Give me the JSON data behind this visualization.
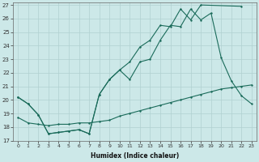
{
  "xlabel": "Humidex (Indice chaleur)",
  "ylabel": "",
  "xlim": [
    -0.5,
    23.5
  ],
  "ylim": [
    17,
    27.2
  ],
  "yticks": [
    17,
    18,
    19,
    20,
    21,
    22,
    23,
    24,
    25,
    26,
    27
  ],
  "xticks": [
    0,
    1,
    2,
    3,
    4,
    5,
    6,
    7,
    8,
    9,
    10,
    11,
    12,
    13,
    14,
    15,
    16,
    17,
    18,
    19,
    20,
    21,
    22,
    23
  ],
  "bg_color": "#cce8e8",
  "grid_color": "#b0d0d0",
  "line_color": "#1a6b5a",
  "line1_x": [
    0,
    1,
    2,
    3,
    4,
    5,
    6,
    7,
    8,
    9,
    10,
    11,
    12,
    13,
    14,
    15,
    16,
    17,
    18,
    22
  ],
  "line1_y": [
    20.2,
    19.7,
    18.9,
    17.5,
    17.6,
    17.7,
    17.8,
    17.5,
    20.4,
    21.5,
    22.2,
    22.8,
    23.9,
    24.4,
    25.5,
    25.4,
    26.7,
    25.9,
    27.0,
    26.9
  ],
  "line3_x": [
    0,
    1,
    2,
    3,
    4,
    5,
    6,
    7,
    8,
    9,
    10,
    11,
    12,
    13,
    14,
    15,
    16,
    17,
    18,
    19,
    20,
    21,
    22,
    23
  ],
  "line3_y": [
    18.7,
    18.3,
    18.2,
    18.1,
    18.2,
    18.2,
    18.3,
    18.3,
    18.4,
    18.5,
    18.8,
    19.0,
    19.2,
    19.4,
    19.6,
    19.8,
    20.0,
    20.2,
    20.4,
    20.6,
    20.8,
    20.9,
    21.0,
    21.1
  ],
  "line4_x": [
    0,
    1,
    2,
    3,
    4,
    5,
    6,
    7,
    8,
    9,
    10,
    11,
    12,
    13,
    14,
    15,
    16,
    17,
    18,
    19,
    20,
    21,
    22,
    23
  ],
  "line4_y": [
    20.2,
    19.7,
    18.9,
    17.5,
    17.6,
    17.7,
    17.8,
    17.5,
    20.4,
    21.5,
    22.2,
    21.5,
    22.8,
    23.0,
    24.4,
    25.5,
    25.4,
    26.7,
    25.9,
    26.4,
    23.1,
    21.4,
    20.3,
    19.7
  ]
}
